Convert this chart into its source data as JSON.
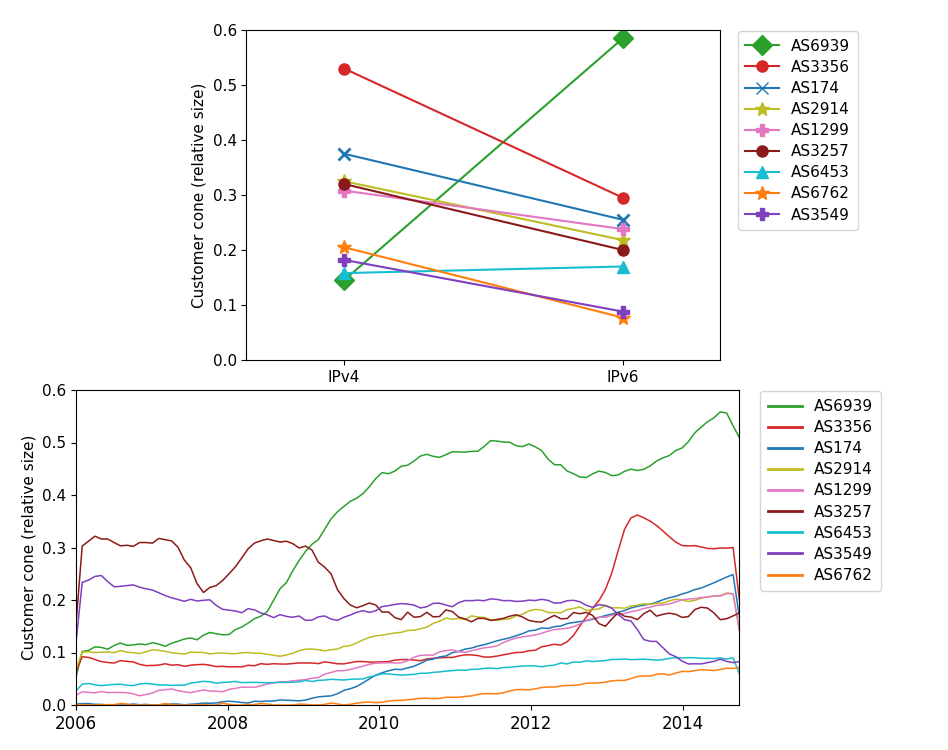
{
  "top_chart": {
    "ylabel": "Customer cone (relative size)",
    "ylim": [
      0,
      0.6
    ],
    "yticks": [
      0,
      0.1,
      0.2,
      0.3,
      0.4,
      0.5,
      0.6
    ],
    "xtick_labels": [
      "IPv4",
      "IPv6"
    ],
    "series": [
      {
        "label": "AS6939",
        "color": "#2ca02c",
        "marker": "D",
        "ipv4": 0.145,
        "ipv6": 0.585
      },
      {
        "label": "AS3356",
        "color": "#d62728",
        "marker": "o",
        "ipv4": 0.53,
        "ipv6": 0.295
      },
      {
        "label": "AS174",
        "color": "#1f77b4",
        "marker": "x",
        "ipv4": 0.375,
        "ipv6": 0.255
      },
      {
        "label": "AS2914",
        "color": "#bcbd22",
        "marker": "*",
        "ipv4": 0.325,
        "ipv6": 0.218
      },
      {
        "label": "AS1299",
        "color": "#e377c2",
        "marker": "P",
        "ipv4": 0.308,
        "ipv6": 0.238
      },
      {
        "label": "AS3257",
        "color": "#8b1a1a",
        "marker": "o",
        "ipv4": 0.32,
        "ipv6": 0.2
      },
      {
        "label": "AS6453",
        "color": "#17becf",
        "marker": "^",
        "ipv4": 0.158,
        "ipv6": 0.17
      },
      {
        "label": "AS6762",
        "color": "#ff7f0e",
        "marker": "*",
        "ipv4": 0.205,
        "ipv6": 0.077
      },
      {
        "label": "AS3549",
        "color": "#7f3fbf",
        "marker": "P",
        "ipv4": 0.182,
        "ipv6": 0.088
      }
    ]
  },
  "bottom_chart": {
    "ylabel": "Customer cone (relative size)",
    "ylim": [
      0,
      0.6
    ],
    "yticks": [
      0,
      0.1,
      0.2,
      0.3,
      0.4,
      0.5,
      0.6
    ],
    "xlim": [
      2006.0,
      2014.75
    ],
    "legend_order": [
      "AS6939",
      "AS3356",
      "AS174",
      "AS2914",
      "AS1299",
      "AS3257",
      "AS6453",
      "AS3549",
      "AS6762"
    ]
  },
  "colors": {
    "AS6939": "#2ca02c",
    "AS3356": "#d62728",
    "AS174": "#1f77b4",
    "AS2914": "#bcbd22",
    "AS1299": "#e377c2",
    "AS3257": "#8b1a1a",
    "AS6453": "#17becf",
    "AS6762": "#ff7f0e",
    "AS3549": "#7f3fbf"
  },
  "figsize": [
    9.48,
    7.5
  ],
  "dpi": 100
}
